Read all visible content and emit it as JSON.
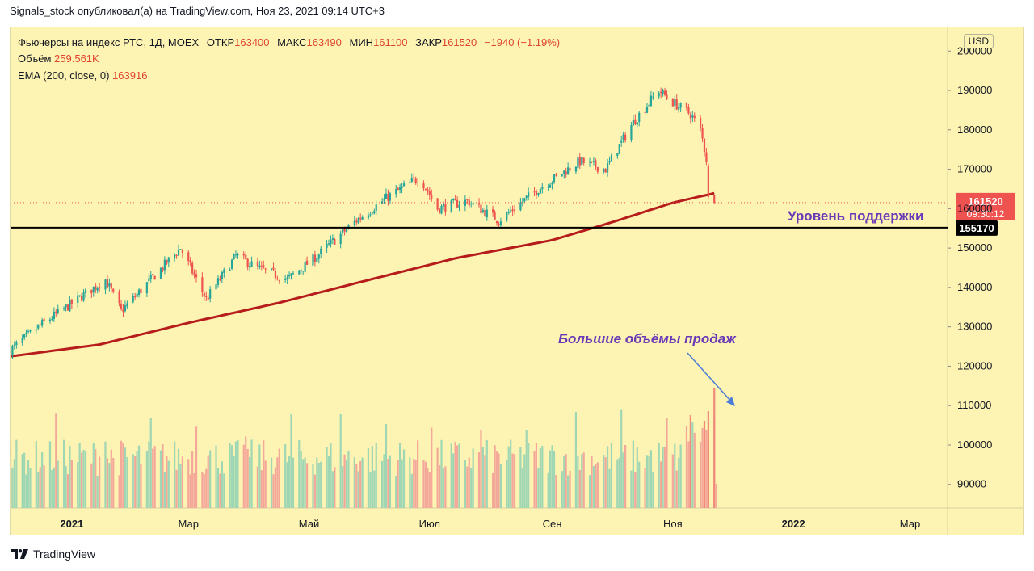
{
  "header": {
    "publish_line": "Signals_stock опубликовал(а) на TradingView.com, Ноя 23, 2021 09:14 UTC+3"
  },
  "legend": {
    "symbol": "Фьючерсы на индекс РТС, 1Д, MOEX",
    "open_label": "ОТКР",
    "open_value": "163400",
    "high_label": "МАКС",
    "high_value": "163490",
    "low_label": "МИН",
    "low_value": "161100",
    "close_label": "ЗАКР",
    "close_value": "161520",
    "change": "−1940 (−1.19%)",
    "volume_label": "Объём",
    "volume_value": "259.561K",
    "ema_label": "EMA (200, close, 0)",
    "ema_value": "163916"
  },
  "currency_button": "USD",
  "price_badge": {
    "price": "161520",
    "countdown": "09:30:12"
  },
  "level_badge": "155170",
  "annotations": {
    "support": "Уровень поддержки",
    "volume": "Большие объёмы продаж"
  },
  "footer": {
    "brand": "TradingView"
  },
  "colors": {
    "background": "#fdf3b2",
    "up": "#26a69a",
    "down": "#ef5350",
    "ema": "#b71c1c",
    "support_line": "#000000",
    "annotation_text": "#6a39b8",
    "arrow": "#4a7bd6"
  },
  "chart_data": {
    "type": "candlestick",
    "y_ticks": [
      90000,
      100000,
      110000,
      120000,
      130000,
      140000,
      150000,
      160000,
      170000,
      180000,
      190000,
      200000
    ],
    "x_ticks": [
      "2021",
      "Мар",
      "Май",
      "Июл",
      "Сен",
      "Ноя",
      "2022",
      "Мар"
    ],
    "ylim": [
      84000,
      206000
    ],
    "last_price": 161520,
    "support_level": 155170,
    "price_path": [
      [
        "2020-12-01",
        124000
      ],
      [
        "2020-12-15",
        130000
      ],
      [
        "2021-01-04",
        137000
      ],
      [
        "2021-01-18",
        142000
      ],
      [
        "2021-01-26",
        134000
      ],
      [
        "2021-02-10",
        142000
      ],
      [
        "2021-02-25",
        150000
      ],
      [
        "2021-03-10",
        137000
      ],
      [
        "2021-03-25",
        148000
      ],
      [
        "2021-04-05",
        145000
      ],
      [
        "2021-04-20",
        142000
      ],
      [
        "2021-05-05",
        148000
      ],
      [
        "2021-05-25",
        157000
      ],
      [
        "2021-06-10",
        163000
      ],
      [
        "2021-06-26",
        168000
      ],
      [
        "2021-07-05",
        160000
      ],
      [
        "2021-07-20",
        162000
      ],
      [
        "2021-08-05",
        157000
      ],
      [
        "2021-08-25",
        165000
      ],
      [
        "2021-09-15",
        172000
      ],
      [
        "2021-09-28",
        170000
      ],
      [
        "2021-10-12",
        182000
      ],
      [
        "2021-10-25",
        190000
      ],
      [
        "2021-11-01",
        187000
      ],
      [
        "2021-11-10",
        184000
      ],
      [
        "2021-11-15",
        180000
      ],
      [
        "2021-11-22",
        163000
      ]
    ],
    "ema_path": [
      [
        "2020-12-01",
        122500
      ],
      [
        "2021-01-15",
        125500
      ],
      [
        "2021-03-01",
        131000
      ],
      [
        "2021-04-15",
        136000
      ],
      [
        "2021-06-01",
        142000
      ],
      [
        "2021-07-15",
        147500
      ],
      [
        "2021-09-01",
        152000
      ],
      [
        "2021-10-01",
        156500
      ],
      [
        "2021-11-01",
        161500
      ],
      [
        "2021-11-22",
        163916
      ]
    ]
  }
}
